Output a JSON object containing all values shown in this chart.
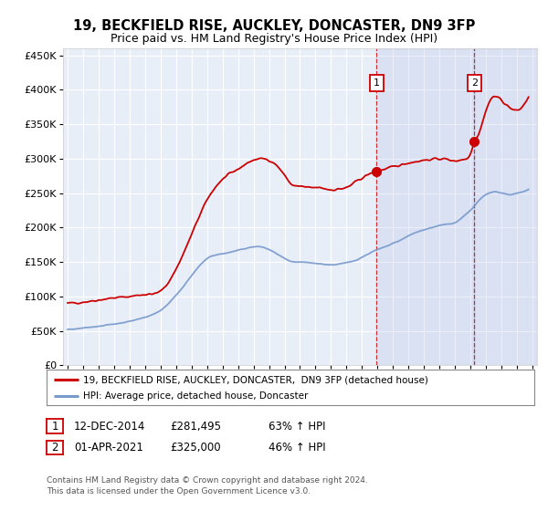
{
  "title": "19, BECKFIELD RISE, AUCKLEY, DONCASTER, DN9 3FP",
  "subtitle": "Price paid vs. HM Land Registry's House Price Index (HPI)",
  "background_color": "#ffffff",
  "plot_bg_color": "#e8eef8",
  "grid_color": "#ffffff",
  "ylim": [
    0,
    460000
  ],
  "yticks": [
    0,
    50000,
    100000,
    150000,
    200000,
    250000,
    300000,
    350000,
    400000,
    450000
  ],
  "xlim_start": 1994.7,
  "xlim_end": 2025.3,
  "xticks": [
    1995,
    1996,
    1997,
    1998,
    1999,
    2000,
    2001,
    2002,
    2003,
    2004,
    2005,
    2006,
    2007,
    2008,
    2009,
    2010,
    2011,
    2012,
    2013,
    2014,
    2015,
    2016,
    2017,
    2018,
    2019,
    2020,
    2021,
    2022,
    2023,
    2024,
    2025
  ],
  "red_line_color": "#cc0000",
  "blue_line_color": "#7799cc",
  "marker1_x": 2014.95,
  "marker1_y": 281495,
  "marker2_x": 2021.25,
  "marker2_y": 325000,
  "annotation1": [
    "1",
    "12-DEC-2014",
    "£281,495",
    "63% ↑ HPI"
  ],
  "annotation2": [
    "2",
    "01-APR-2021",
    "£325,000",
    "46% ↑ HPI"
  ],
  "legend_label1": "19, BECKFIELD RISE, AUCKLEY, DONCASTER,  DN9 3FP (detached house)",
  "legend_label2": "HPI: Average price, detached house, Doncaster",
  "footer": "Contains HM Land Registry data © Crown copyright and database right 2024.\nThis data is licensed under the Open Government Licence v3.0."
}
